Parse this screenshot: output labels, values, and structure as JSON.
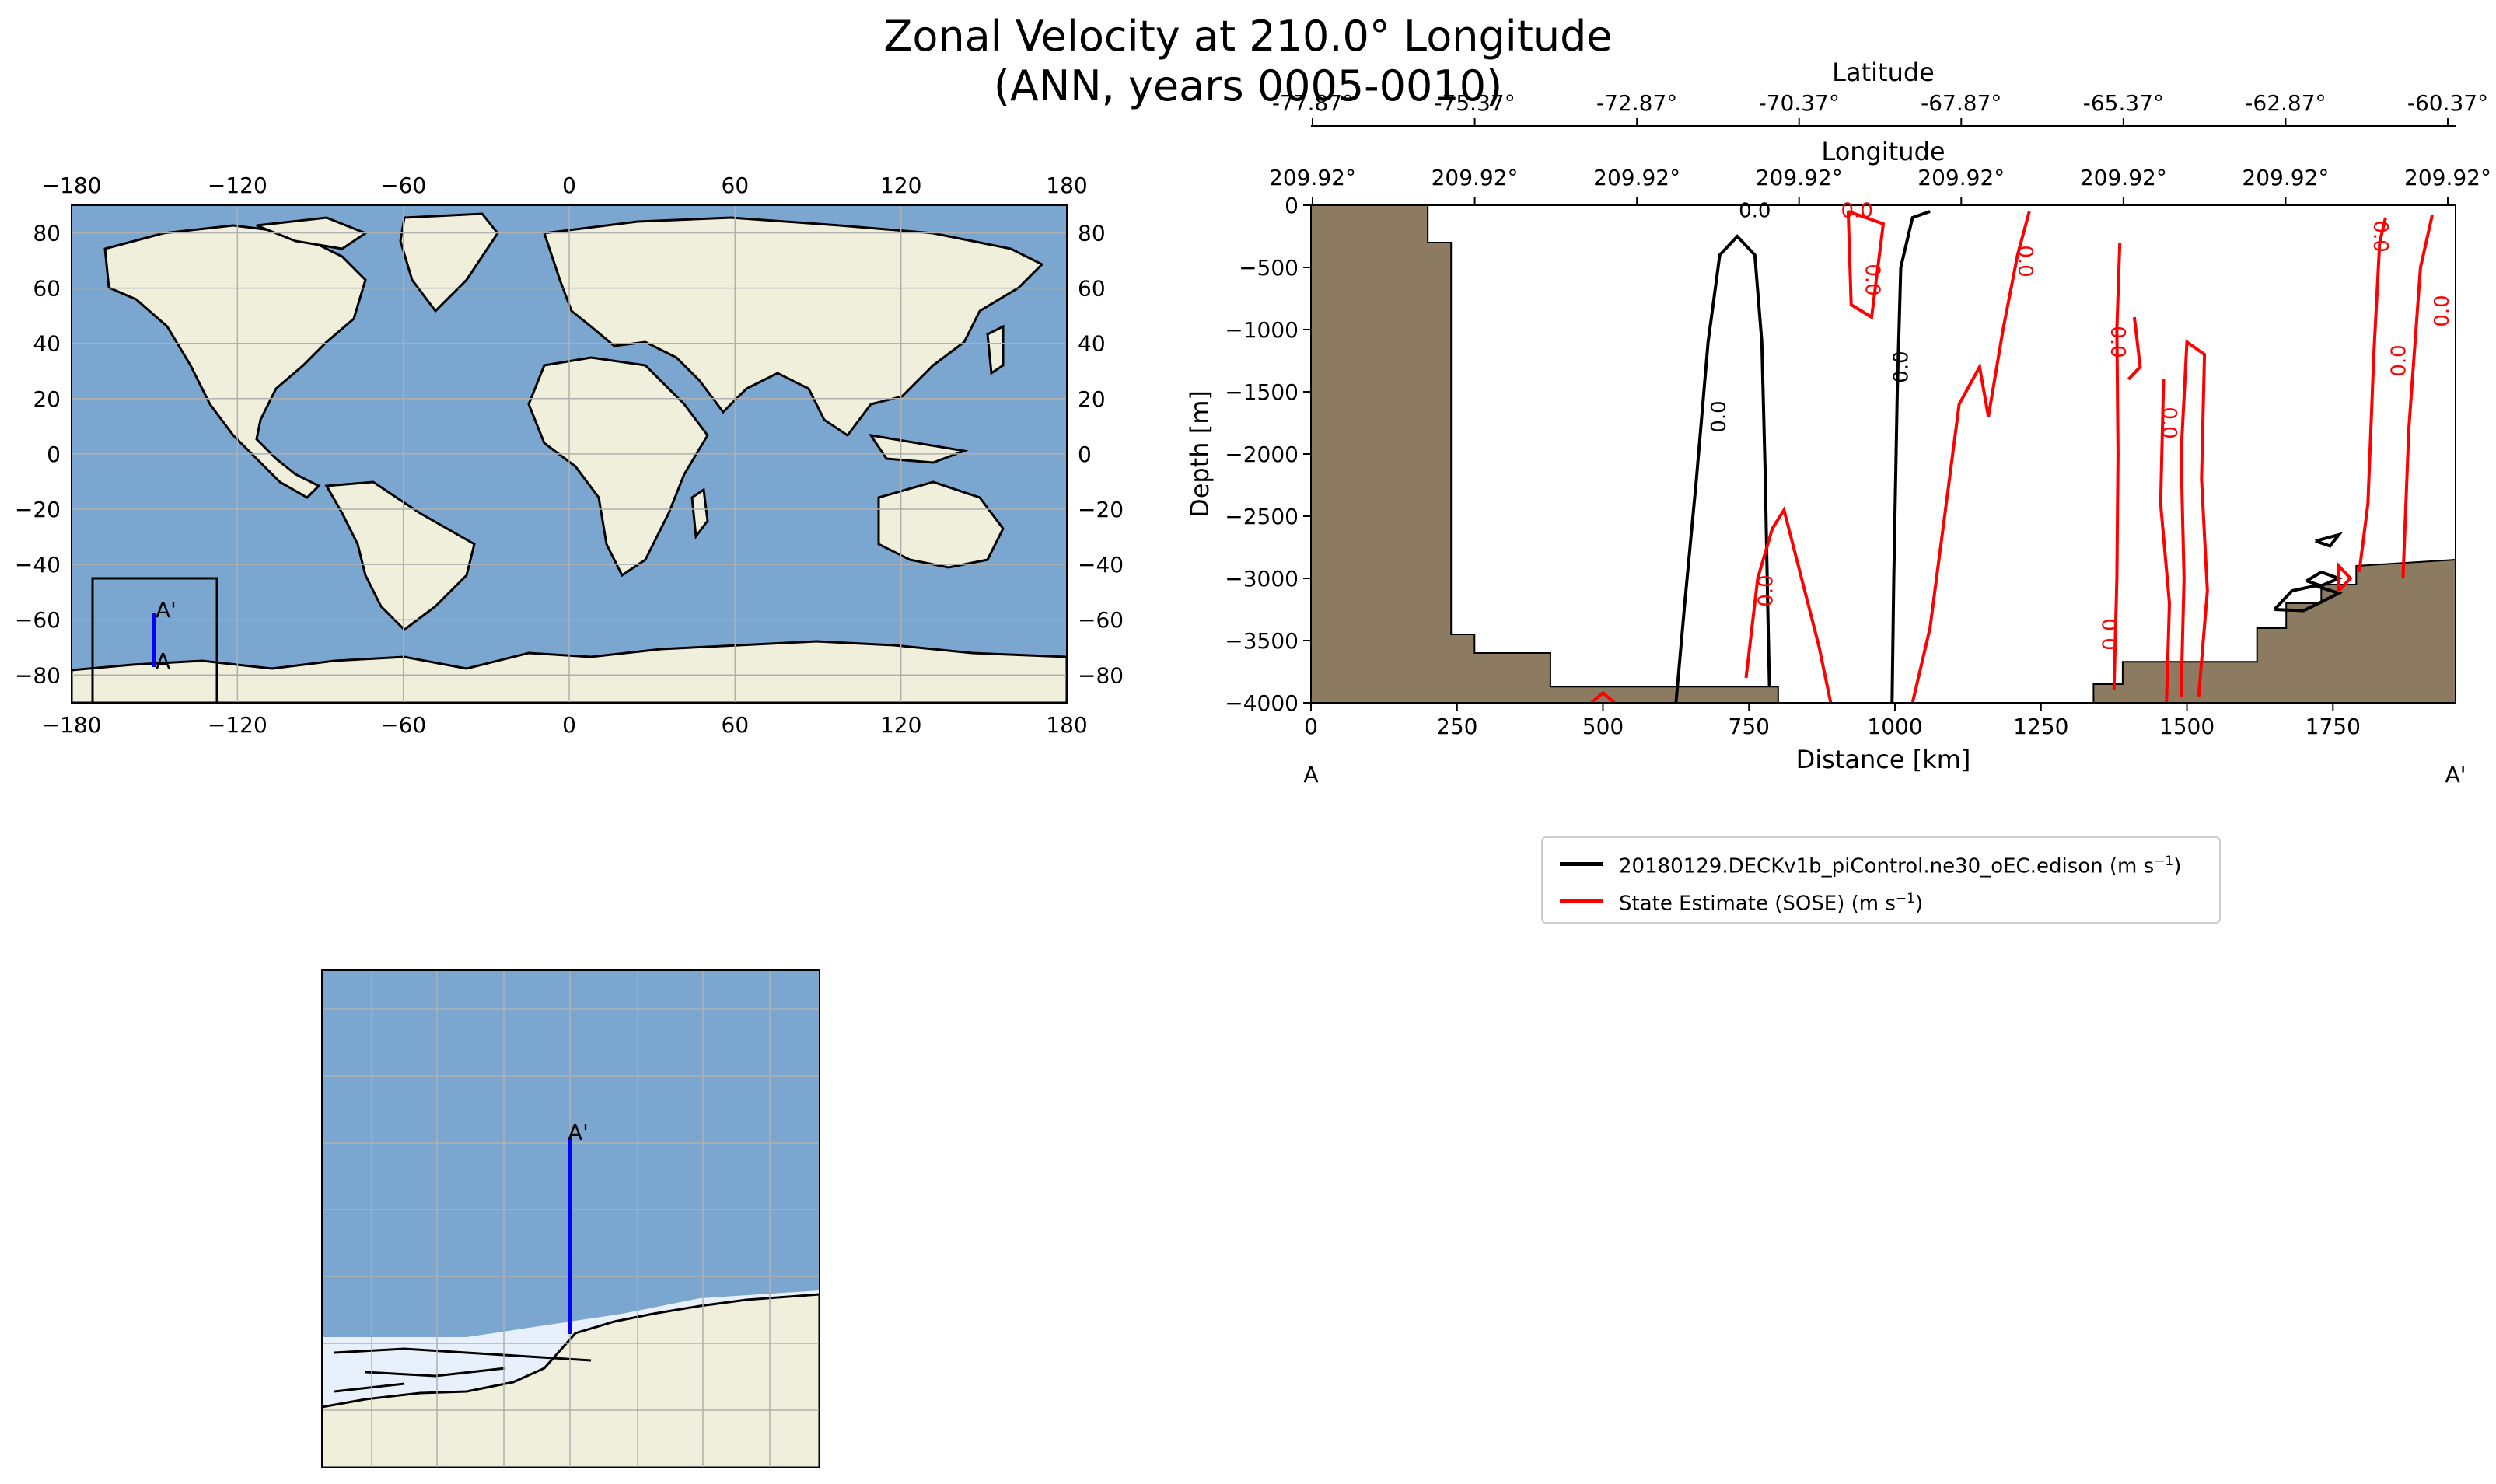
{
  "figure": {
    "title_line1": "Zonal Velocity at 210.0° Longitude",
    "title_line2": "(ANN, years 0005-0010)"
  },
  "map": {
    "lon_ticks": [
      "−180",
      "−120",
      "−60",
      "0",
      "60",
      "120",
      "180"
    ],
    "lat_ticks": [
      "80",
      "60",
      "40",
      "20",
      "0",
      "−20",
      "−40",
      "−60",
      "−80"
    ],
    "section_start_label": "A",
    "section_end_label": "A'",
    "colors": {
      "ocean": "#7aa6cf",
      "land": "#efefdc",
      "ice": "#e8f0fb",
      "section": "#0000ff",
      "grid": "#b0b0b0"
    }
  },
  "inset": {
    "section_end_label": "A'"
  },
  "chart_data": {
    "type": "contour",
    "xlabel": "Distance [km]",
    "ylabel": "Depth [m]",
    "xlim": [
      0,
      1960
    ],
    "ylim": [
      -4000,
      0
    ],
    "x_ticks": [
      0,
      250,
      500,
      750,
      1000,
      1250,
      1500,
      1750
    ],
    "y_ticks": [
      0,
      -500,
      -1000,
      -1500,
      -2000,
      -2500,
      -3000,
      -3500,
      -4000
    ],
    "top_axis_label": "Latitude",
    "latitude_ticks": [
      "-77.87°",
      "-75.37°",
      "-72.87°",
      "-70.37°",
      "-67.87°",
      "-65.37°",
      "-62.87°",
      "-60.37°"
    ],
    "longitude_axis_label": "Longitude",
    "longitude_ticks": [
      "209.92°",
      "209.92°",
      "209.92°",
      "209.92°",
      "209.92°",
      "209.92°",
      "209.92°",
      "209.92°"
    ],
    "start_label": "A",
    "end_label": "A'",
    "contour_level_label": "0.0",
    "series": [
      {
        "name": "20180129.DECKv1b_piControl.ne30_oEC.edison (m s",
        "unit_sup": "−1",
        "unit_close": ")",
        "color": "#000000"
      },
      {
        "name": "State Estimate (SOSE) (m s",
        "unit_sup": "−1",
        "unit_close": ")",
        "color": "#ff0000"
      }
    ],
    "bathymetry_color": "#8c7b61",
    "bathymetry": [
      [
        0,
        0
      ],
      [
        200,
        0
      ],
      [
        200,
        -300
      ],
      [
        240,
        -300
      ],
      [
        240,
        -3450
      ],
      [
        280,
        -3450
      ],
      [
        280,
        -3600
      ],
      [
        410,
        -3600
      ],
      [
        410,
        -3870
      ],
      [
        800,
        -3870
      ],
      [
        800,
        -4000
      ],
      [
        1340,
        -4000
      ],
      [
        1340,
        -3850
      ],
      [
        1390,
        -3850
      ],
      [
        1390,
        -3670
      ],
      [
        1620,
        -3670
      ],
      [
        1620,
        -3400
      ],
      [
        1670,
        -3400
      ],
      [
        1670,
        -3200
      ],
      [
        1730,
        -3200
      ],
      [
        1730,
        -3050
      ],
      [
        1790,
        -3050
      ],
      [
        1790,
        -2900
      ],
      [
        1960,
        -2850
      ],
      [
        1960,
        -4000
      ],
      [
        0,
        -4000
      ]
    ],
    "contours_model": [
      [
        [
          625,
          -4000
        ],
        [
          640,
          -3200
        ],
        [
          660,
          -2200
        ],
        [
          680,
          -1100
        ],
        [
          700,
          -400
        ],
        [
          730,
          -250
        ],
        [
          760,
          -400
        ],
        [
          772,
          -1100
        ],
        [
          778,
          -2200
        ],
        [
          782,
          -3200
        ],
        [
          785,
          -3870
        ]
      ],
      [
        [
          995,
          -4000
        ],
        [
          998,
          -3000
        ],
        [
          1004,
          -1500
        ],
        [
          1010,
          -500
        ],
        [
          1030,
          -100
        ],
        [
          1060,
          -50
        ]
      ],
      [
        [
          1650,
          -3250
        ],
        [
          1680,
          -3100
        ],
        [
          1720,
          -3060
        ],
        [
          1760,
          -3120
        ],
        [
          1700,
          -3260
        ],
        [
          1650,
          -3250
        ]
      ],
      [
        [
          1705,
          -3020
        ],
        [
          1730,
          -2950
        ],
        [
          1760,
          -3000
        ],
        [
          1730,
          -3060
        ],
        [
          1705,
          -3020
        ]
      ],
      [
        [
          1720,
          -2700
        ],
        [
          1760,
          -2650
        ],
        [
          1745,
          -2740
        ],
        [
          1720,
          -2700
        ]
      ]
    ],
    "contours_sose": [
      [
        [
          745,
          -3800
        ],
        [
          765,
          -3000
        ],
        [
          790,
          -2600
        ],
        [
          810,
          -2450
        ],
        [
          840,
          -3000
        ],
        [
          870,
          -3550
        ],
        [
          890,
          -4000
        ]
      ],
      [
        [
          1030,
          -4000
        ],
        [
          1060,
          -3400
        ],
        [
          1085,
          -2500
        ],
        [
          1110,
          -1600
        ],
        [
          1145,
          -1300
        ],
        [
          1160,
          -1700
        ],
        [
          1185,
          -1000
        ],
        [
          1210,
          -400
        ],
        [
          1230,
          -50
        ]
      ],
      [
        [
          920,
          -50
        ],
        [
          980,
          -150
        ],
        [
          960,
          -900
        ],
        [
          925,
          -800
        ],
        [
          920,
          -50
        ]
      ],
      [
        [
          1375,
          -3900
        ],
        [
          1380,
          -3000
        ],
        [
          1382,
          -2000
        ],
        [
          1380,
          -1000
        ],
        [
          1385,
          -300
        ]
      ],
      [
        [
          1410,
          -900
        ],
        [
          1420,
          -1300
        ],
        [
          1400,
          -1400
        ]
      ],
      [
        [
          1460,
          -1400
        ],
        [
          1455,
          -2400
        ],
        [
          1470,
          -3200
        ],
        [
          1465,
          -4000
        ]
      ],
      [
        [
          1490,
          -3950
        ],
        [
          1495,
          -3000
        ],
        [
          1490,
          -2000
        ],
        [
          1500,
          -1100
        ],
        [
          1530,
          -1200
        ],
        [
          1525,
          -2200
        ],
        [
          1535,
          -3100
        ],
        [
          1520,
          -3950
        ]
      ],
      [
        [
          1795,
          -2950
        ],
        [
          1810,
          -2400
        ],
        [
          1820,
          -1200
        ],
        [
          1830,
          -300
        ],
        [
          1840,
          -100
        ]
      ],
      [
        [
          1870,
          -3000
        ],
        [
          1880,
          -1800
        ],
        [
          1900,
          -500
        ],
        [
          1920,
          -80
        ]
      ],
      [
        [
          1760,
          -3100
        ],
        [
          1780,
          -3000
        ],
        [
          1760,
          -2900
        ],
        [
          1760,
          -3100
        ]
      ],
      [
        [
          480,
          -4000
        ],
        [
          500,
          -3920
        ],
        [
          520,
          -4000
        ]
      ]
    ]
  }
}
